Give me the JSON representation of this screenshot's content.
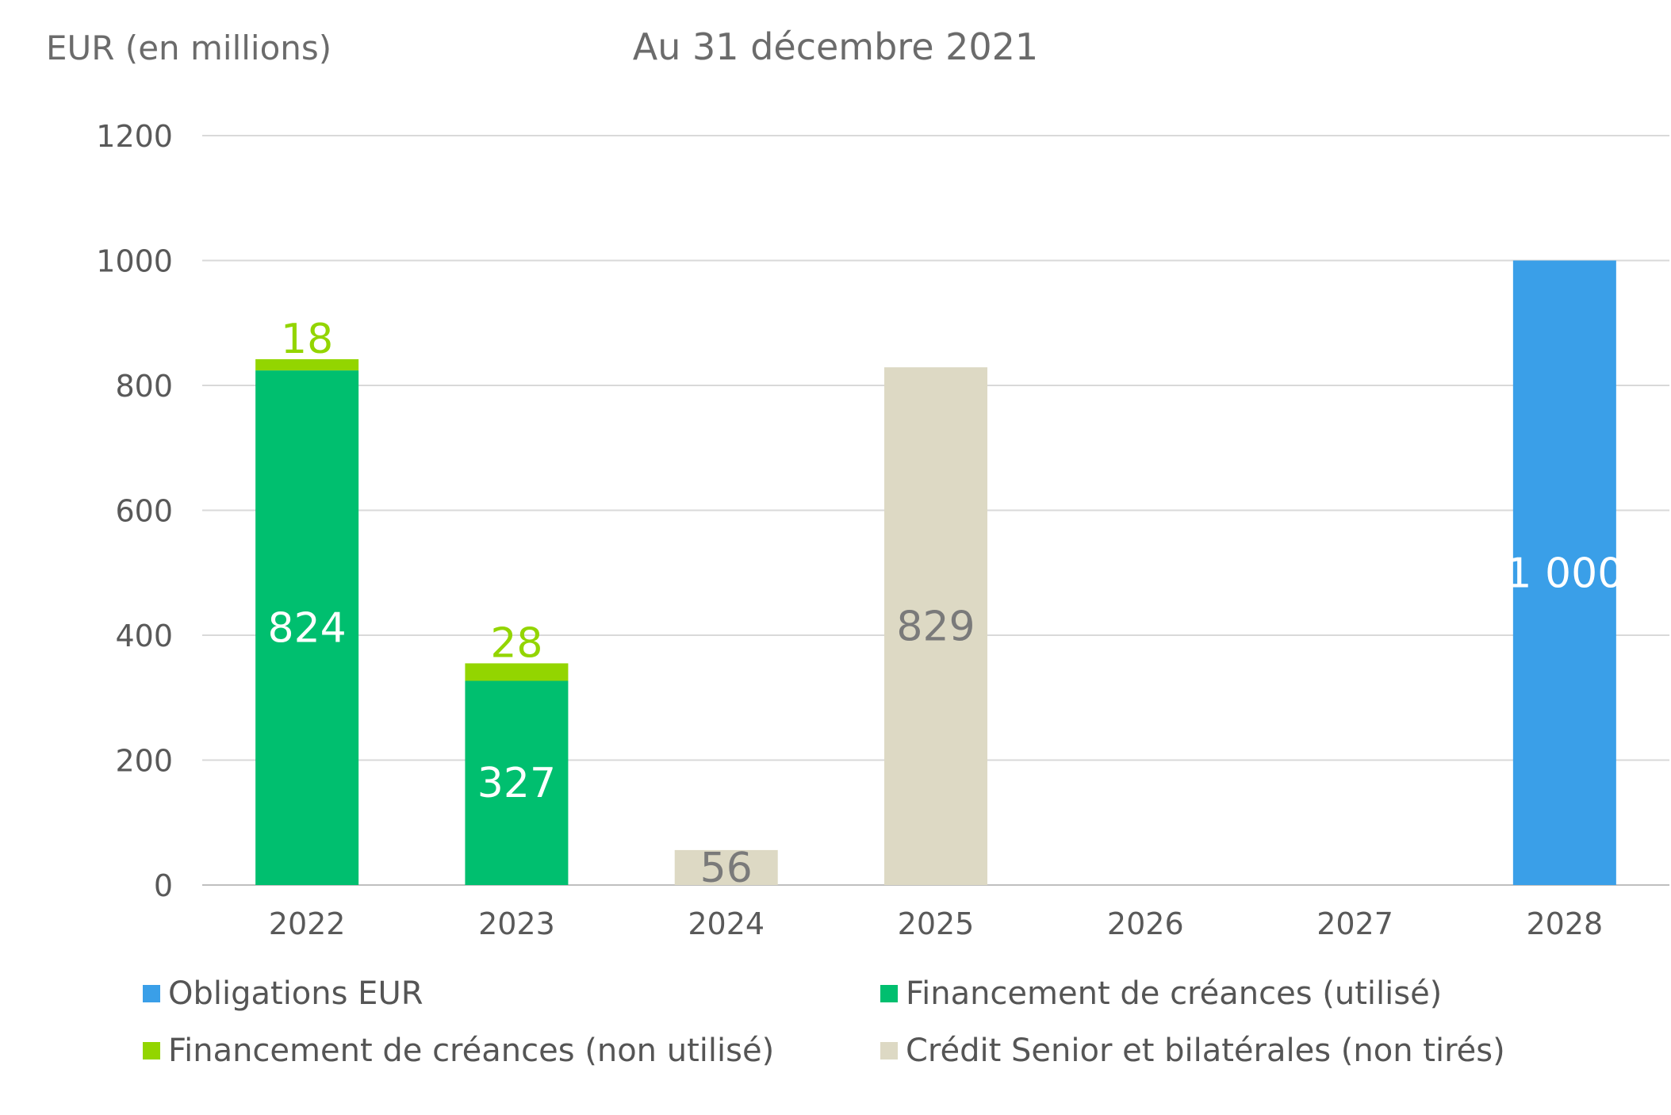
{
  "chart_data": {
    "type": "bar",
    "stacked": true,
    "title": "Au 31 décembre 2021",
    "ylabel": "EUR (en millions)",
    "xlabel": "",
    "ylim": [
      0,
      1200
    ],
    "yticks": [
      0,
      200,
      400,
      600,
      800,
      1000,
      1200
    ],
    "grid": true,
    "legend_position": "bottom",
    "categories": [
      "2022",
      "2023",
      "2024",
      "2025",
      "2026",
      "2027",
      "2028"
    ],
    "series": [
      {
        "name": "Obligations EUR",
        "color": "#3a9fe8",
        "values": [
          0,
          0,
          0,
          0,
          0,
          0,
          1000
        ],
        "labels": [
          "",
          "",
          "",
          "",
          "",
          "",
          "1 000"
        ],
        "label_color": "#ffffff"
      },
      {
        "name": "Financement de créances (utilisé)",
        "color": "#00bf6f",
        "values": [
          824,
          327,
          0,
          0,
          0,
          0,
          0
        ],
        "labels": [
          "824",
          "327",
          "",
          "",
          "",
          "",
          ""
        ],
        "label_color": "#ffffff"
      },
      {
        "name": "Financement de créances (non utilisé)",
        "color": "#93d500",
        "values": [
          18,
          28,
          0,
          0,
          0,
          0,
          0
        ],
        "labels": [
          "18",
          "28",
          "",
          "",
          "",
          "",
          ""
        ],
        "label_color": "#93d500"
      },
      {
        "name": "Crédit Senior et bilatérales (non tirés)",
        "color": "#ddd9c4",
        "values": [
          0,
          0,
          56,
          829,
          0,
          0,
          0
        ],
        "labels": [
          "",
          "",
          "56",
          "829",
          "",
          "",
          ""
        ],
        "label_color": "#7a7a7a"
      }
    ]
  }
}
